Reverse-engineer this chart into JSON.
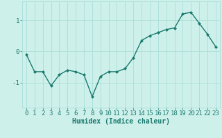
{
  "x": [
    0,
    1,
    2,
    3,
    4,
    5,
    6,
    7,
    8,
    9,
    10,
    11,
    12,
    13,
    14,
    15,
    16,
    17,
    18,
    19,
    20,
    21,
    22,
    23
  ],
  "y": [
    -0.1,
    -0.65,
    -0.65,
    -1.1,
    -0.75,
    -0.6,
    -0.65,
    -0.75,
    -1.45,
    -0.8,
    -0.65,
    -0.65,
    -0.55,
    -0.2,
    0.35,
    0.5,
    0.6,
    0.7,
    0.75,
    1.2,
    1.25,
    0.9,
    0.55,
    0.15
  ],
  "line_color": "#1a7a6e",
  "marker": "D",
  "marker_size": 2.0,
  "linewidth": 1.0,
  "bg_color": "#cef0eb",
  "grid_color": "#aaddd8",
  "xlabel": "Humidex (Indice chaleur)",
  "ylabel": "",
  "ylim": [
    -1.8,
    1.6
  ],
  "xlim": [
    -0.5,
    23.5
  ],
  "yticks": [
    -1,
    0,
    1
  ],
  "xticks": [
    0,
    1,
    2,
    3,
    4,
    5,
    6,
    7,
    8,
    9,
    10,
    11,
    12,
    13,
    14,
    15,
    16,
    17,
    18,
    19,
    20,
    21,
    22,
    23
  ],
  "xlabel_fontsize": 7,
  "tick_fontsize": 6.5
}
